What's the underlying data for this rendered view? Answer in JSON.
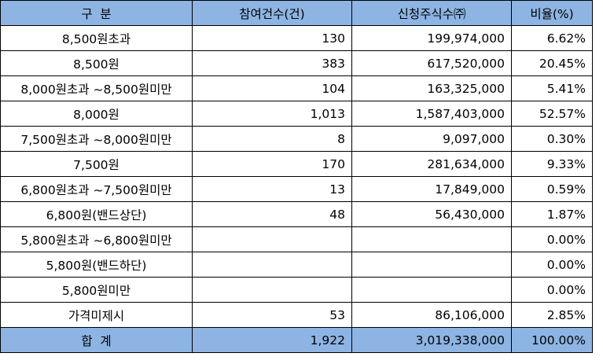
{
  "table": {
    "headers": [
      "구  분",
      "참여건수(건)",
      "신청주식수㈜",
      "비율(%)"
    ],
    "rows": [
      {
        "label": "8,500원초과",
        "count": "130",
        "shares": "199,974,000",
        "ratio": "6.62%"
      },
      {
        "label": "8,500원",
        "count": "383",
        "shares": "617,520,000",
        "ratio": "20.45%"
      },
      {
        "label": "8,000원초과 ~8,500원미만",
        "count": "104",
        "shares": "163,325,000",
        "ratio": "5.41%"
      },
      {
        "label": "8,000원",
        "count": "1,013",
        "shares": "1,587,403,000",
        "ratio": "52.57%"
      },
      {
        "label": "7,500원초과 ~8,000원미만",
        "count": "8",
        "shares": "9,097,000",
        "ratio": "0.30%"
      },
      {
        "label": "7,500원",
        "count": "170",
        "shares": "281,634,000",
        "ratio": "9.33%"
      },
      {
        "label": "6,800원초과 ~7,500원미만",
        "count": "13",
        "shares": "17,849,000",
        "ratio": "0.59%"
      },
      {
        "label": "6,800원(밴드상단)",
        "count": "48",
        "shares": "56,430,000",
        "ratio": "1.87%"
      },
      {
        "label": "5,800원초과 ~6,800원미만",
        "count": "",
        "shares": "",
        "ratio": "0.00%"
      },
      {
        "label": "5,800원(밴드하단)",
        "count": "",
        "shares": "",
        "ratio": "0.00%"
      },
      {
        "label": "5,800원미만",
        "count": "",
        "shares": "",
        "ratio": "0.00%"
      },
      {
        "label": "가격미제시",
        "count": "53",
        "shares": "86,106,000",
        "ratio": "2.85%"
      }
    ],
    "total": {
      "label": "합  계",
      "count": "1,922",
      "shares": "3,019,338,000",
      "ratio": "100.00%"
    }
  },
  "colors": {
    "header_bg": "#8db4e2",
    "border": "#000000"
  }
}
